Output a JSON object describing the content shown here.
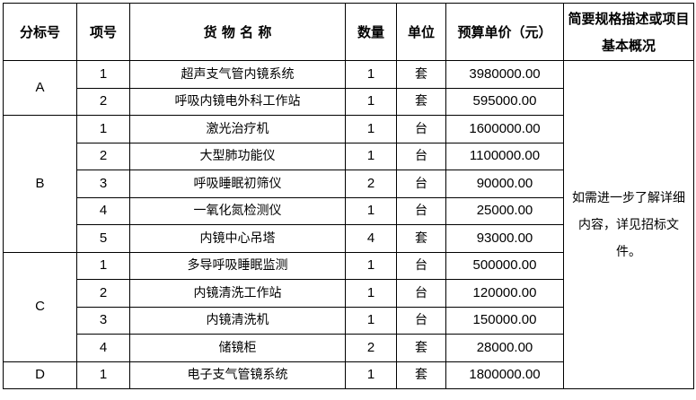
{
  "headers": [
    "分标号",
    "项号",
    "货 物 名 称",
    "数量",
    "单位",
    "预算单价（元）",
    "简要规格描述或项目基本概况"
  ],
  "note": "如需进一步了解详细内容，详见招标文件。",
  "groups": [
    {
      "lot": "A",
      "items": [
        {
          "no": "1",
          "name": "超声支气管内镜系统",
          "qty": "1",
          "unit": "套",
          "price": "3980000.00"
        },
        {
          "no": "2",
          "name": "呼吸内镜电外科工作站",
          "qty": "1",
          "unit": "套",
          "price": "595000.00"
        }
      ]
    },
    {
      "lot": "B",
      "items": [
        {
          "no": "1",
          "name": "激光治疗机",
          "qty": "1",
          "unit": "台",
          "price": "1600000.00"
        },
        {
          "no": "2",
          "name": "大型肺功能仪",
          "qty": "1",
          "unit": "台",
          "price": "1100000.00"
        },
        {
          "no": "3",
          "name": "呼吸睡眠初筛仪",
          "qty": "2",
          "unit": "台",
          "price": "90000.00"
        },
        {
          "no": "4",
          "name": "一氧化氮检测仪",
          "qty": "1",
          "unit": "台",
          "price": "25000.00"
        },
        {
          "no": "5",
          "name": "内镜中心吊塔",
          "qty": "4",
          "unit": "套",
          "price": "93000.00"
        }
      ]
    },
    {
      "lot": "C",
      "items": [
        {
          "no": "1",
          "name": "多导呼吸睡眠监测",
          "qty": "1",
          "unit": "台",
          "price": "500000.00"
        },
        {
          "no": "2",
          "name": "内镜清洗工作站",
          "qty": "1",
          "unit": "台",
          "price": "120000.00"
        },
        {
          "no": "3",
          "name": "内镜清洗机",
          "qty": "1",
          "unit": "台",
          "price": "150000.00"
        },
        {
          "no": "4",
          "name": "储镜柜",
          "qty": "2",
          "unit": "套",
          "price": "28000.00"
        }
      ]
    },
    {
      "lot": "D",
      "items": [
        {
          "no": "1",
          "name": "电子支气管镜系统",
          "qty": "1",
          "unit": "套",
          "price": "1800000.00"
        }
      ]
    }
  ]
}
